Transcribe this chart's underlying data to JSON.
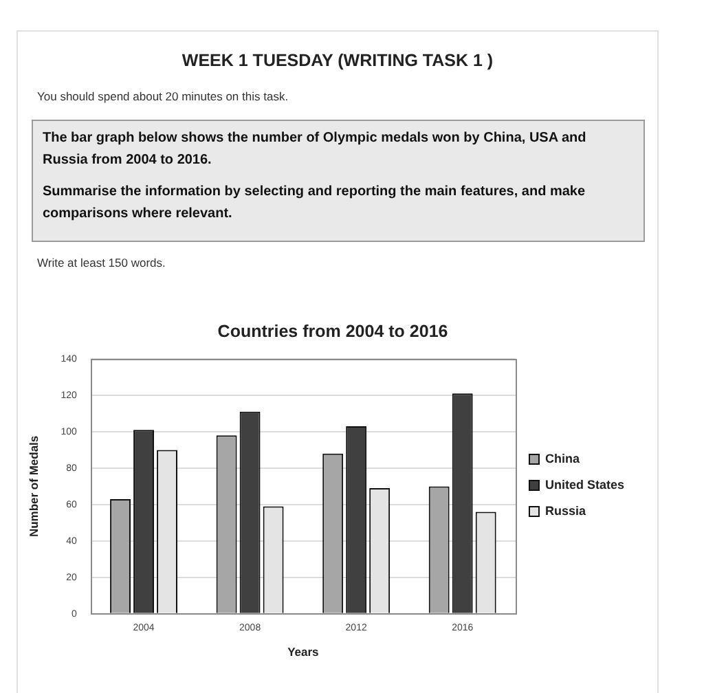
{
  "chart_data": {
    "type": "bar",
    "title": "Countries from 2004 to 2016",
    "xlabel": "Years",
    "ylabel": "Number of Medals",
    "categories": [
      "2004",
      "2008",
      "2012",
      "2016"
    ],
    "series": [
      {
        "name": "China",
        "color": "#a6a6a6",
        "values": [
          63,
          98,
          88,
          70
        ]
      },
      {
        "name": "United States",
        "color": "#404040",
        "values": [
          101,
          111,
          103,
          121
        ]
      },
      {
        "name": "Russia",
        "color": "#e4e4e4",
        "values": [
          90,
          59,
          69,
          56
        ]
      }
    ],
    "ylim": [
      0,
      140
    ],
    "yticks": [
      0,
      20,
      40,
      60,
      80,
      100,
      120,
      140
    ],
    "grid": "y",
    "legend": "right",
    "annotations": [
      "WEEK 1 TUESDAY (WRITING TASK 1 )",
      "You should spend about 20 minutes on this task.",
      "The bar graph below shows the number of Olympic medals won by China, USA and Russia from 2004 to 2016.",
      "Summarise the information by selecting and reporting the main features, and make comparisons where relevant.",
      "Write at least 150 words."
    ]
  }
}
